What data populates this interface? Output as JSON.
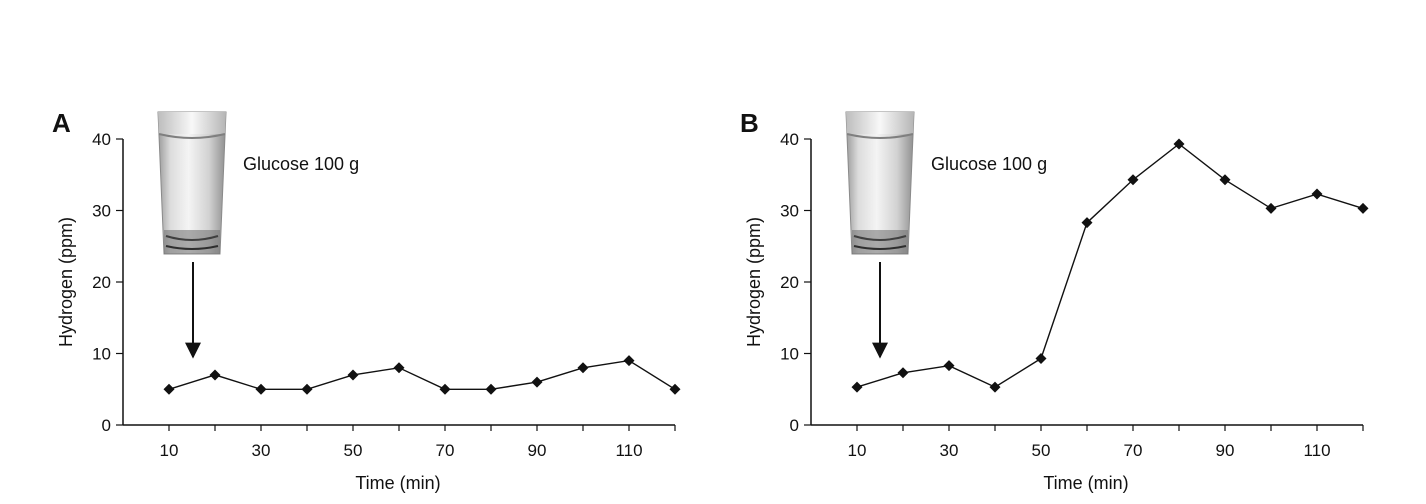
{
  "chart_data": [
    {
      "type": "line",
      "panel_label": "A",
      "xlabel": "Time (min)",
      "ylabel": "Hydrogen (ppm)",
      "xlim": [
        0,
        120
      ],
      "ylim": [
        0,
        40
      ],
      "x_ticks": [
        10,
        30,
        50,
        70,
        90,
        110
      ],
      "y_ticks": [
        0,
        10,
        20,
        30,
        40
      ],
      "grid": false,
      "annotation": "Glucose 100 g",
      "annotation_icon": "glass-of-water-icon",
      "arrow_target_x": 20,
      "series": [
        {
          "x": [
            10,
            20,
            30,
            40,
            50,
            60,
            70,
            80,
            90,
            100,
            110,
            120
          ],
          "values": [
            5,
            7,
            5,
            5,
            7,
            8,
            5,
            5,
            6,
            8,
            9,
            5
          ]
        }
      ]
    },
    {
      "type": "line",
      "panel_label": "B",
      "xlabel": "Time (min)",
      "ylabel": "Hydrogen (ppm)",
      "xlim": [
        0,
        120
      ],
      "ylim": [
        0,
        40
      ],
      "x_ticks": [
        10,
        30,
        50,
        70,
        90,
        110
      ],
      "y_ticks": [
        0,
        10,
        20,
        30,
        40
      ],
      "grid": false,
      "annotation": "Glucose 100 g",
      "annotation_icon": "glass-of-water-icon",
      "arrow_target_x": 20,
      "series": [
        {
          "x": [
            10,
            20,
            30,
            40,
            50,
            60,
            70,
            80,
            90,
            100,
            110,
            120
          ],
          "values": [
            5.3,
            7.3,
            8.3,
            5.3,
            9.3,
            28.3,
            34.3,
            39.3,
            34.3,
            30.3,
            32.3,
            30.3
          ]
        }
      ]
    }
  ]
}
